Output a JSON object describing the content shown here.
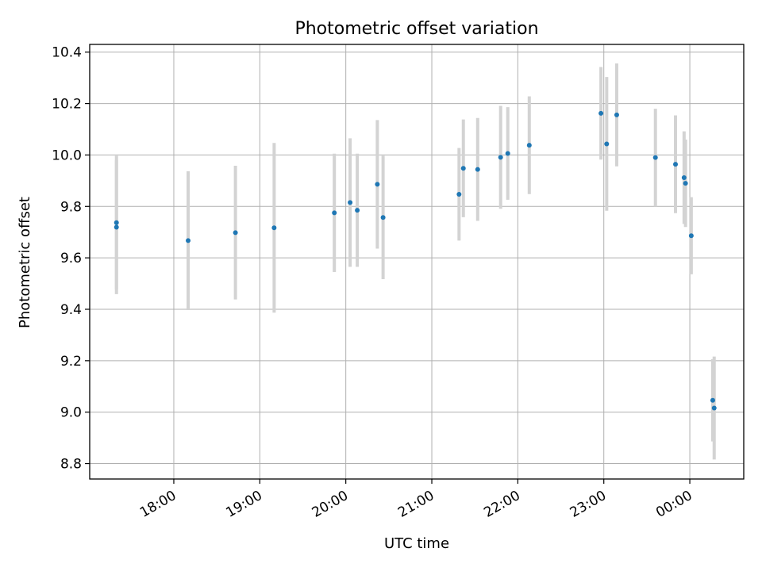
{
  "chart_data": {
    "type": "scatter",
    "title": "Photometric offset variation",
    "xlabel": "UTC time",
    "ylabel": "Photometric offset",
    "x_ticks": [
      "18:00",
      "19:00",
      "20:00",
      "21:00",
      "22:00",
      "23:00",
      "00:00"
    ],
    "x_tick_hours": [
      18,
      19,
      20,
      21,
      22,
      23,
      24
    ],
    "xlim_hours": [
      17.022,
      24.627
    ],
    "y_ticks": [
      "8.8",
      "9.0",
      "9.2",
      "9.4",
      "9.6",
      "9.8",
      "10.0",
      "10.2",
      "10.4"
    ],
    "y_tick_values": [
      8.8,
      9.0,
      9.2,
      9.4,
      9.6,
      9.8,
      10.0,
      10.2,
      10.4
    ],
    "ylim": [
      8.74,
      10.43
    ],
    "grid": true,
    "marker_color": "#1f77b4",
    "errorbar_color": "#d3d3d3",
    "points": [
      {
        "t": "17:20",
        "y": 9.737,
        "err": 0.26
      },
      {
        "t": "17:20",
        "y": 9.719,
        "err": 0.26
      },
      {
        "t": "18:10",
        "y": 9.667,
        "err": 0.27
      },
      {
        "t": "18:43",
        "y": 9.698,
        "err": 0.26
      },
      {
        "t": "19:10",
        "y": 9.717,
        "err": 0.33
      },
      {
        "t": "19:52",
        "y": 9.775,
        "err": 0.23
      },
      {
        "t": "20:03",
        "y": 9.815,
        "err": 0.25
      },
      {
        "t": "20:08",
        "y": 9.785,
        "err": 0.22
      },
      {
        "t": "20:22",
        "y": 9.886,
        "err": 0.25
      },
      {
        "t": "20:26",
        "y": 9.757,
        "err": 0.24
      },
      {
        "t": "21:19",
        "y": 9.847,
        "err": 0.18
      },
      {
        "t": "21:22",
        "y": 9.948,
        "err": 0.19
      },
      {
        "t": "21:32",
        "y": 9.944,
        "err": 0.2
      },
      {
        "t": "21:48",
        "y": 9.991,
        "err": 0.2
      },
      {
        "t": "21:53",
        "y": 10.006,
        "err": 0.18
      },
      {
        "t": "22:08",
        "y": 10.038,
        "err": 0.19
      },
      {
        "t": "22:58",
        "y": 10.162,
        "err": 0.18
      },
      {
        "t": "23:02",
        "y": 10.043,
        "err": 0.26
      },
      {
        "t": "23:09",
        "y": 10.156,
        "err": 0.2
      },
      {
        "t": "23:36",
        "y": 9.99,
        "err": 0.19
      },
      {
        "t": "23:50",
        "y": 9.964,
        "err": 0.19
      },
      {
        "t": "23:56",
        "y": 9.912,
        "err": 0.18
      },
      {
        "t": "23:57",
        "y": 9.89,
        "err": 0.17
      },
      {
        "t": "00:01",
        "y": 9.686,
        "err": 0.15
      },
      {
        "t": "00:16",
        "y": 9.046,
        "err": 0.16
      },
      {
        "t": "00:17",
        "y": 9.016,
        "err": 0.2
      }
    ]
  }
}
